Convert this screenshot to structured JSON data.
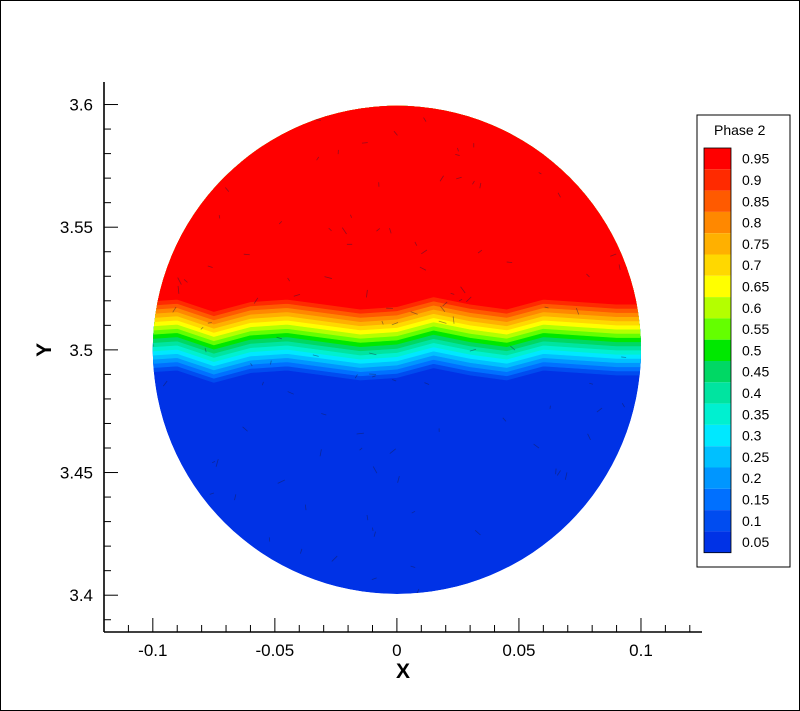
{
  "chart_data": {
    "type": "heatmap",
    "xlabel": "X",
    "ylabel": "Y",
    "xlim": [
      -0.12,
      0.125
    ],
    "ylim": [
      3.385,
      3.61
    ],
    "x_ticks": [
      {
        "value": -0.1,
        "label": "-0.1"
      },
      {
        "value": -0.05,
        "label": "-0.05"
      },
      {
        "value": 0,
        "label": "0"
      },
      {
        "value": 0.05,
        "label": "0.05"
      },
      {
        "value": 0.1,
        "label": "0.1"
      }
    ],
    "y_ticks": [
      {
        "value": 3.4,
        "label": "3.4"
      },
      {
        "value": 3.45,
        "label": "3.45"
      },
      {
        "value": 3.5,
        "label": "3.5"
      },
      {
        "value": 3.55,
        "label": "3.55"
      },
      {
        "value": 3.6,
        "label": "3.6"
      }
    ],
    "domain": {
      "shape": "circle",
      "center": [
        0,
        3.5
      ],
      "radius": 0.1
    },
    "interface": {
      "x": [
        -0.105,
        -0.09,
        -0.075,
        -0.06,
        -0.045,
        -0.03,
        -0.015,
        0,
        0.015,
        0.03,
        0.045,
        0.06,
        0.075,
        0.09,
        0.105
      ],
      "y": [
        3.506,
        3.507,
        3.502,
        3.506,
        3.507,
        3.505,
        3.503,
        3.504,
        3.508,
        3.505,
        3.503,
        3.507,
        3.506,
        3.505,
        3.505
      ],
      "band_halfwidth": 0.017
    },
    "legend": {
      "title": "Phase 2",
      "position": "right",
      "levels": [
        "0.95",
        "0.9",
        "0.85",
        "0.8",
        "0.75",
        "0.7",
        "0.65",
        "0.6",
        "0.55",
        "0.5",
        "0.45",
        "0.4",
        "0.35",
        "0.3",
        "0.25",
        "0.2",
        "0.15",
        "0.1",
        "0.05"
      ],
      "colors": [
        "#ff0000",
        "#ff2a00",
        "#ff5a00",
        "#ff8800",
        "#ffb000",
        "#ffd800",
        "#ffff00",
        "#b4ff00",
        "#64ff00",
        "#00e800",
        "#00d864",
        "#00e4a0",
        "#00f0d0",
        "#00e8ff",
        "#00c0ff",
        "#0096ff",
        "#0070ff",
        "#004cf0",
        "#0032e6"
      ]
    }
  }
}
